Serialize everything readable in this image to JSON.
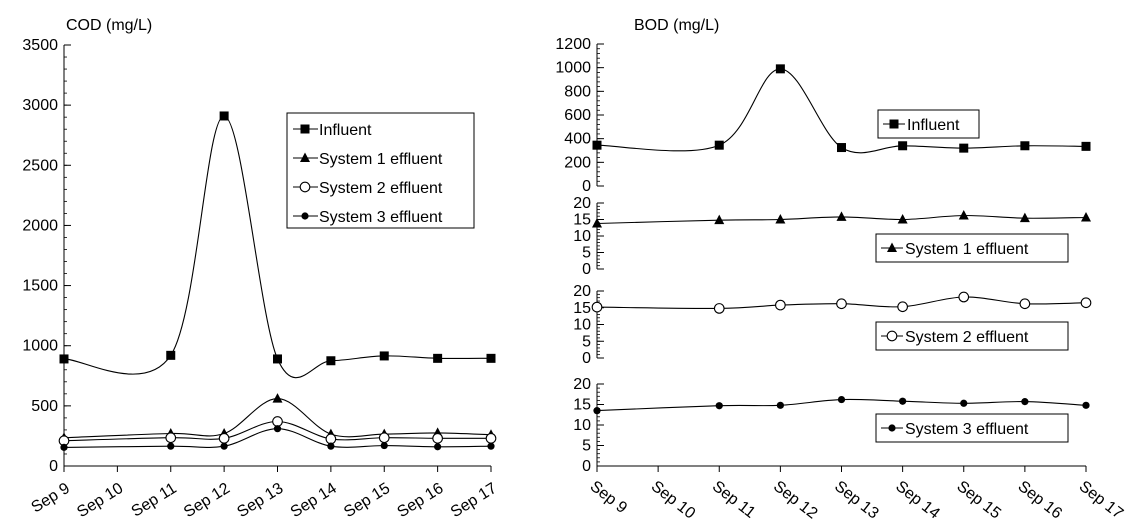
{
  "chart_data": [
    {
      "type": "line",
      "ylabel": "COD (mg/L)",
      "ylim": [
        0,
        3500
      ],
      "yticks": [
        0,
        500,
        1000,
        1500,
        2000,
        2500,
        3000,
        3500
      ],
      "x_ticks": [
        "Sep 9",
        "Sep 10",
        "Sep 11",
        "Sep 12",
        "Sep 13",
        "Sep 14",
        "Sep 15",
        "Sep 16",
        "Sep 17"
      ],
      "series": [
        {
          "name": "Influent",
          "marker": "square",
          "x": [
            "Sep 9",
            "Sep 11",
            "Sep 12",
            "Sep 13",
            "Sep 14",
            "Sep 15",
            "Sep 16",
            "Sep 17"
          ],
          "values": [
            890,
            920,
            2910,
            890,
            875,
            915,
            895,
            895
          ]
        },
        {
          "name": "System 1 effluent",
          "marker": "triangle",
          "x": [
            "Sep 9",
            "Sep 11",
            "Sep 12",
            "Sep 13",
            "Sep 14",
            "Sep 15",
            "Sep 16",
            "Sep 17"
          ],
          "values": [
            235,
            270,
            270,
            560,
            265,
            265,
            275,
            260
          ]
        },
        {
          "name": "System 2 effluent",
          "marker": "open-circle",
          "x": [
            "Sep 9",
            "Sep 11",
            "Sep 12",
            "Sep 13",
            "Sep 14",
            "Sep 15",
            "Sep 16",
            "Sep 17"
          ],
          "values": [
            210,
            235,
            230,
            370,
            225,
            235,
            230,
            230
          ]
        },
        {
          "name": "System 3 effluent",
          "marker": "dot",
          "x": [
            "Sep 9",
            "Sep 11",
            "Sep 12",
            "Sep 13",
            "Sep 14",
            "Sep 15",
            "Sep 16",
            "Sep 17"
          ],
          "values": [
            155,
            165,
            165,
            310,
            165,
            170,
            160,
            165
          ]
        }
      ],
      "legend_position": "top-right",
      "grid": false
    },
    {
      "type": "line",
      "ylabel": "BOD (mg/L)",
      "x_ticks": [
        "Sep 9",
        "Sep 10",
        "Sep 11",
        "Sep 12",
        "Sep 13",
        "Sep 14",
        "Sep 15",
        "Sep 16",
        "Sep 17"
      ],
      "panels": [
        {
          "name": "Influent",
          "marker": "square",
          "ylim": [
            0,
            1200
          ],
          "yticks": [
            0,
            200,
            400,
            600,
            800,
            1000,
            1200
          ],
          "x": [
            "Sep 9",
            "Sep 11",
            "Sep 12",
            "Sep 13",
            "Sep 14",
            "Sep 15",
            "Sep 16",
            "Sep 17"
          ],
          "values": [
            345,
            345,
            990,
            325,
            340,
            320,
            340,
            335
          ]
        },
        {
          "name": "System 1 effluent",
          "marker": "triangle",
          "ylim": [
            0,
            20
          ],
          "yticks": [
            0,
            5,
            10,
            15,
            20
          ],
          "x": [
            "Sep 9",
            "Sep 11",
            "Sep 12",
            "Sep 13",
            "Sep 14",
            "Sep 15",
            "Sep 16",
            "Sep 17"
          ],
          "values": [
            13.8,
            14.8,
            15.0,
            15.8,
            15.0,
            16.2,
            15.4,
            15.6
          ]
        },
        {
          "name": "System 2 effluent",
          "marker": "open-circle",
          "ylim": [
            0,
            20
          ],
          "yticks": [
            0,
            5,
            10,
            15,
            20
          ],
          "x": [
            "Sep 9",
            "Sep 11",
            "Sep 12",
            "Sep 13",
            "Sep 14",
            "Sep 15",
            "Sep 16",
            "Sep 17"
          ],
          "values": [
            15.2,
            14.8,
            15.8,
            16.2,
            15.3,
            18.2,
            16.2,
            16.5
          ]
        },
        {
          "name": "System 3 effluent",
          "marker": "dot",
          "ylim": [
            0,
            20
          ],
          "yticks": [
            0,
            5,
            10,
            15,
            20
          ],
          "x": [
            "Sep 9",
            "Sep 11",
            "Sep 12",
            "Sep 13",
            "Sep 14",
            "Sep 15",
            "Sep 16",
            "Sep 17"
          ],
          "values": [
            13.5,
            14.7,
            14.8,
            16.2,
            15.8,
            15.3,
            15.7,
            14.8
          ]
        }
      ],
      "legend_position": "right",
      "grid": false
    }
  ]
}
